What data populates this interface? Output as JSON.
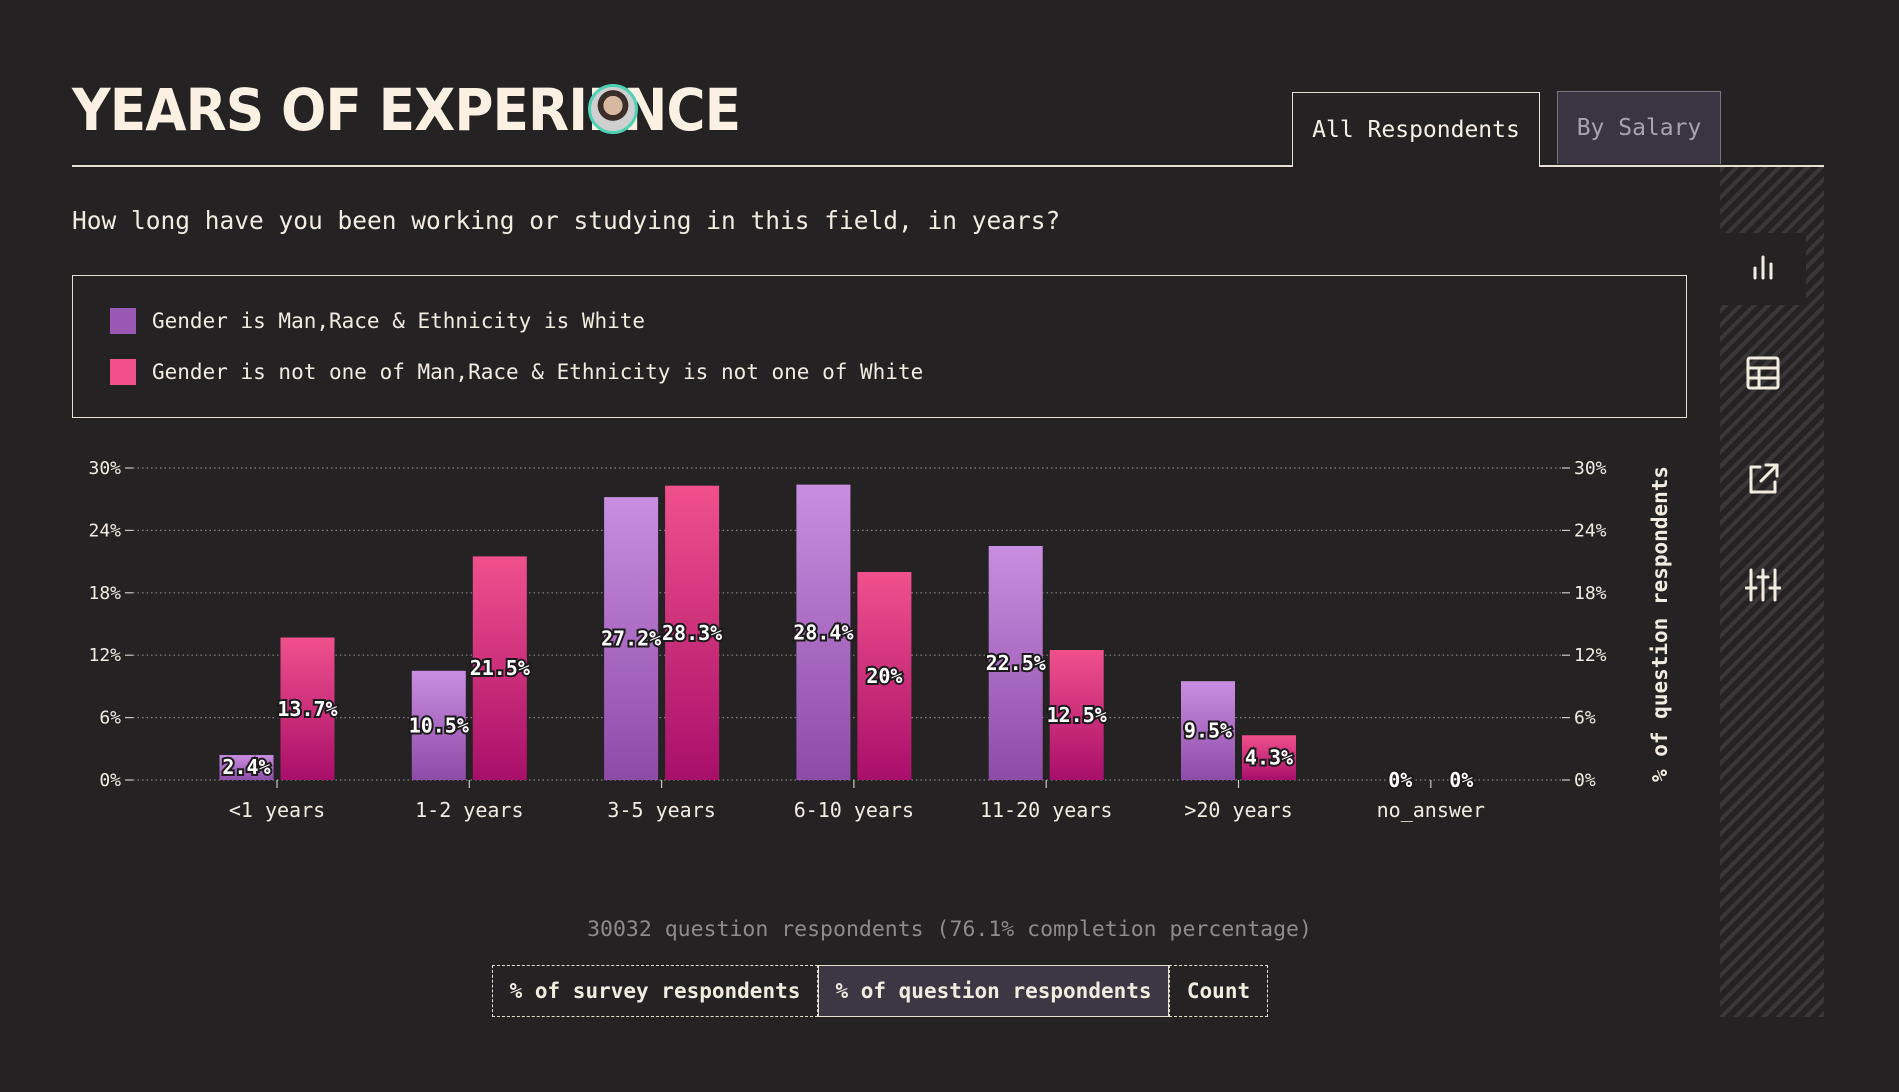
{
  "header": {
    "title": "YEARS OF EXPERIENCE",
    "tabs": [
      {
        "label": "All Respondents",
        "active": true
      },
      {
        "label": "By Salary",
        "active": false
      }
    ]
  },
  "question": "How long have you been working or studying in this field, in years?",
  "legend": [
    {
      "label": "Gender is Man,Race & Ethnicity is White",
      "color": "#9b59b6"
    },
    {
      "label": "Gender is not one of Man,Race & Ethnicity is not one of White",
      "color": "#f0518c"
    }
  ],
  "sidebar": {
    "buttons": [
      {
        "icon": "bar-chart-icon",
        "active": true
      },
      {
        "icon": "table-icon",
        "active": false
      },
      {
        "icon": "share-icon",
        "active": false
      },
      {
        "icon": "sliders-icon",
        "active": false
      }
    ]
  },
  "chart_data": {
    "type": "bar",
    "categories": [
      "<1 years",
      "1-2 years",
      "3-5 years",
      "6-10 years",
      "11-20 years",
      ">20 years",
      "no_answer"
    ],
    "series": [
      {
        "name": "Gender is Man,Race & Ethnicity is White",
        "values": [
          2.4,
          10.5,
          27.2,
          28.4,
          22.5,
          9.5,
          0
        ],
        "labels": [
          "2.4%",
          "10.5%",
          "27.2%",
          "28.4%",
          "22.5%",
          "9.5%",
          "0%"
        ],
        "color_top": "#c88ee0",
        "color_bottom": "#8e4ba8"
      },
      {
        "name": "Gender is not one of Man,Race & Ethnicity is not one of White",
        "values": [
          13.7,
          21.5,
          28.3,
          20,
          12.5,
          4.3,
          0
        ],
        "labels": [
          "13.7%",
          "21.5%",
          "28.3%",
          "20%",
          "12.5%",
          "4.3%",
          "0%"
        ],
        "color_top": "#f0518c",
        "color_bottom": "#a80f6a"
      }
    ],
    "yticks": [
      "0%",
      "6%",
      "12%",
      "18%",
      "24%",
      "30%"
    ],
    "ylim": [
      0,
      30
    ],
    "ylabel_right": "% of question respondents",
    "grid": true
  },
  "footer": {
    "respondents_text": "30032 question respondents (76.1% completion percentage)",
    "modes": [
      {
        "label": "% of survey respondents",
        "active": false
      },
      {
        "label": "% of question respondents",
        "active": true
      },
      {
        "label": "Count",
        "active": false
      }
    ]
  }
}
